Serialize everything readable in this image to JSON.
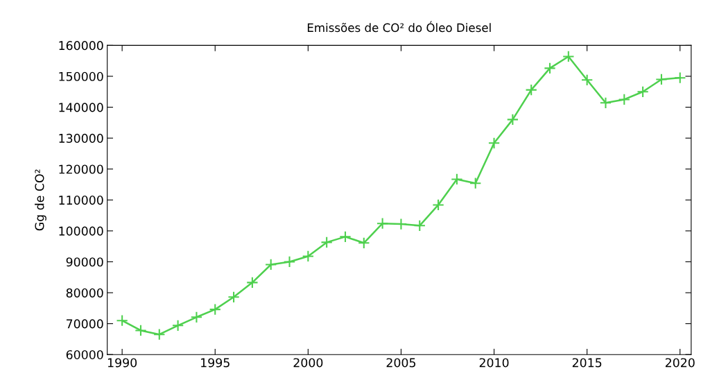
{
  "chart_data": {
    "type": "line",
    "title": "Emissões de CO² do Óleo Diesel",
    "ylabel": "Gg de CO²",
    "x": [
      1990,
      1991,
      1992,
      1993,
      1994,
      1995,
      1996,
      1997,
      1998,
      1999,
      2000,
      2001,
      2002,
      2003,
      2004,
      2005,
      2006,
      2007,
      2008,
      2009,
      2010,
      2011,
      2012,
      2013,
      2014,
      2015,
      2016,
      2017,
      2018,
      2019,
      2020
    ],
    "series": [
      {
        "color": "#4ed04e",
        "values": [
          71000,
          67800,
          66500,
          69400,
          72100,
          74600,
          78600,
          83300,
          89100,
          90000,
          91800,
          96300,
          98100,
          96100,
          102400,
          102200,
          101700,
          108400,
          116700,
          115400,
          128400,
          136000,
          145600,
          152600,
          156400,
          148800,
          141400,
          142500,
          145000,
          149000,
          149500
        ]
      }
    ],
    "xlim": [
      1989.2,
      2020.6
    ],
    "xticks": [
      1990,
      1995,
      2000,
      2005,
      2010,
      2015,
      2020
    ],
    "ylim": [
      60000,
      160000
    ],
    "yticks": [
      60000,
      70000,
      80000,
      90000,
      100000,
      110000,
      120000,
      130000,
      140000,
      150000,
      160000
    ],
    "marker": "cross",
    "line_style": "solid",
    "grid": false,
    "legend": false
  }
}
